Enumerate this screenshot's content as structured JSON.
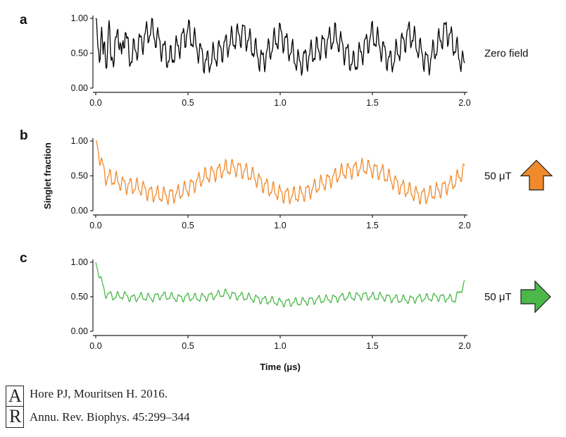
{
  "chart_data": [
    {
      "type": "line",
      "panel_letter": "a",
      "side_label": "Zero field",
      "arrow": "none",
      "color": "#000000",
      "xlim": [
        0,
        2.0
      ],
      "ylim": [
        0,
        1.0
      ],
      "xticks": [
        "0.0",
        "0.5",
        "1.0",
        "1.5",
        "2.0"
      ],
      "yticks": [
        "0.00",
        "0.50",
        "1.00"
      ],
      "series": [
        {
          "x": [
            0.0,
            0.01,
            0.02,
            0.03,
            0.04,
            0.05,
            0.06,
            0.07,
            0.08,
            0.09,
            0.1,
            0.12,
            0.14,
            0.16,
            0.18,
            0.2,
            0.3,
            0.4,
            0.5,
            0.6,
            0.7,
            0.8,
            0.9,
            1.0,
            1.1,
            1.2,
            1.3,
            1.4,
            1.5,
            1.6,
            1.7,
            1.8,
            1.9,
            2.0
          ],
          "y": [
            1.0,
            0.55,
            0.42,
            0.95,
            0.4,
            0.6,
            0.38,
            0.92,
            0.45,
            0.55,
            0.38,
            0.9,
            0.4,
            0.88,
            0.42,
            0.5,
            0.85,
            0.4,
            0.82,
            0.35,
            0.6,
            0.8,
            0.38,
            0.78,
            0.35,
            0.55,
            0.75,
            0.33,
            0.78,
            0.36,
            0.8,
            0.35,
            0.85,
            0.3
          ]
        }
      ]
    },
    {
      "type": "line",
      "panel_letter": "b",
      "side_label": "50 μT",
      "arrow": "up",
      "color": "#F08A2C",
      "xlim": [
        0,
        2.0
      ],
      "ylim": [
        0,
        1.0
      ],
      "xticks": [
        "0.0",
        "0.5",
        "1.0",
        "1.5",
        "2.0"
      ],
      "yticks": [
        "0.00",
        "0.50",
        "1.00"
      ],
      "ylabel": "Singlet fraction",
      "series": [
        {
          "x": [
            0.0,
            0.05,
            0.1,
            0.15,
            0.2,
            0.25,
            0.3,
            0.35,
            0.4,
            0.45,
            0.5,
            0.55,
            0.6,
            0.65,
            0.7,
            0.75,
            0.8,
            0.85,
            0.9,
            0.95,
            1.0,
            1.05,
            1.1,
            1.15,
            1.2,
            1.25,
            1.3,
            1.35,
            1.4,
            1.45,
            1.5,
            1.55,
            1.6,
            1.65,
            1.7,
            1.75,
            1.8,
            1.85,
            1.9,
            1.95,
            2.0
          ],
          "y": [
            1.0,
            0.5,
            0.45,
            0.38,
            0.35,
            0.32,
            0.25,
            0.22,
            0.22,
            0.25,
            0.32,
            0.42,
            0.5,
            0.55,
            0.6,
            0.62,
            0.58,
            0.5,
            0.4,
            0.3,
            0.25,
            0.22,
            0.22,
            0.28,
            0.35,
            0.42,
            0.5,
            0.56,
            0.6,
            0.62,
            0.6,
            0.55,
            0.45,
            0.35,
            0.28,
            0.22,
            0.22,
            0.28,
            0.35,
            0.42,
            0.6
          ]
        }
      ]
    },
    {
      "type": "line",
      "panel_letter": "c",
      "side_label": "50 μT",
      "arrow": "right",
      "color": "#4CB84A",
      "xlim": [
        0,
        2.0
      ],
      "ylim": [
        0,
        1.0
      ],
      "xticks": [
        "0.0",
        "0.5",
        "1.0",
        "1.5",
        "2.0"
      ],
      "yticks": [
        "0.00",
        "0.50",
        "1.00"
      ],
      "xlabel": "Time (μs)",
      "series": [
        {
          "x": [
            0.0,
            0.05,
            0.1,
            0.15,
            0.2,
            0.25,
            0.3,
            0.35,
            0.4,
            0.45,
            0.5,
            0.55,
            0.6,
            0.65,
            0.7,
            0.75,
            0.8,
            0.85,
            0.9,
            0.95,
            1.0,
            1.05,
            1.1,
            1.15,
            1.2,
            1.25,
            1.3,
            1.35,
            1.4,
            1.45,
            1.5,
            1.55,
            1.6,
            1.65,
            1.7,
            1.75,
            1.8,
            1.85,
            1.9,
            1.95,
            2.0
          ],
          "y": [
            1.0,
            0.55,
            0.5,
            0.52,
            0.48,
            0.5,
            0.48,
            0.52,
            0.5,
            0.48,
            0.5,
            0.48,
            0.5,
            0.52,
            0.55,
            0.52,
            0.5,
            0.48,
            0.46,
            0.44,
            0.42,
            0.42,
            0.42,
            0.44,
            0.46,
            0.46,
            0.48,
            0.5,
            0.5,
            0.52,
            0.5,
            0.5,
            0.48,
            0.46,
            0.46,
            0.48,
            0.48,
            0.5,
            0.48,
            0.46,
            0.7
          ]
        }
      ]
    }
  ],
  "citation": {
    "line1": "Hore PJ, Mouritsen H. 2016.",
    "line2": "Annu. Rev. Biophys. 45:299–344",
    "logo_text": "AR"
  },
  "colors": {
    "axis": "#222222",
    "arrow_up": "#F08A2C",
    "arrow_right": "#4CB84A"
  }
}
